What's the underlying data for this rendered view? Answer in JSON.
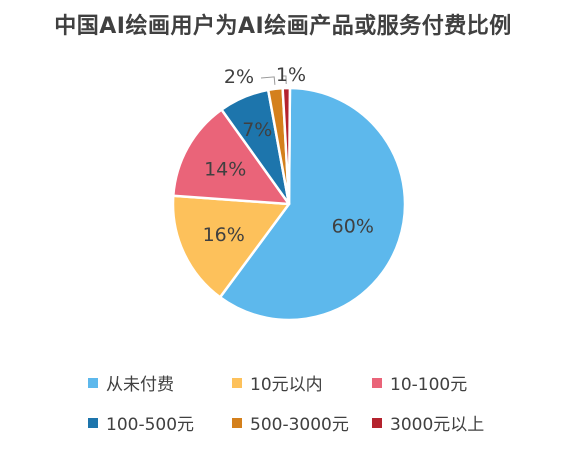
{
  "chart_data": {
    "type": "pie",
    "title": "中国AI绘画用户为AI绘画产品或服务付费比例",
    "categories": [
      "从未付费",
      "10元以内",
      "10-100元",
      "100-500元",
      "500-3000元",
      "3000元以上"
    ],
    "values": [
      60,
      16,
      14,
      7,
      2,
      1
    ],
    "value_labels": [
      "60%",
      "16%",
      "14%",
      "7%",
      "2%",
      "1%"
    ],
    "colors": [
      "#5DB8EC",
      "#FDC15B",
      "#EA6479",
      "#1D75AC",
      "#D4801C",
      "#B4232E"
    ],
    "legend_placement": "bottom"
  }
}
